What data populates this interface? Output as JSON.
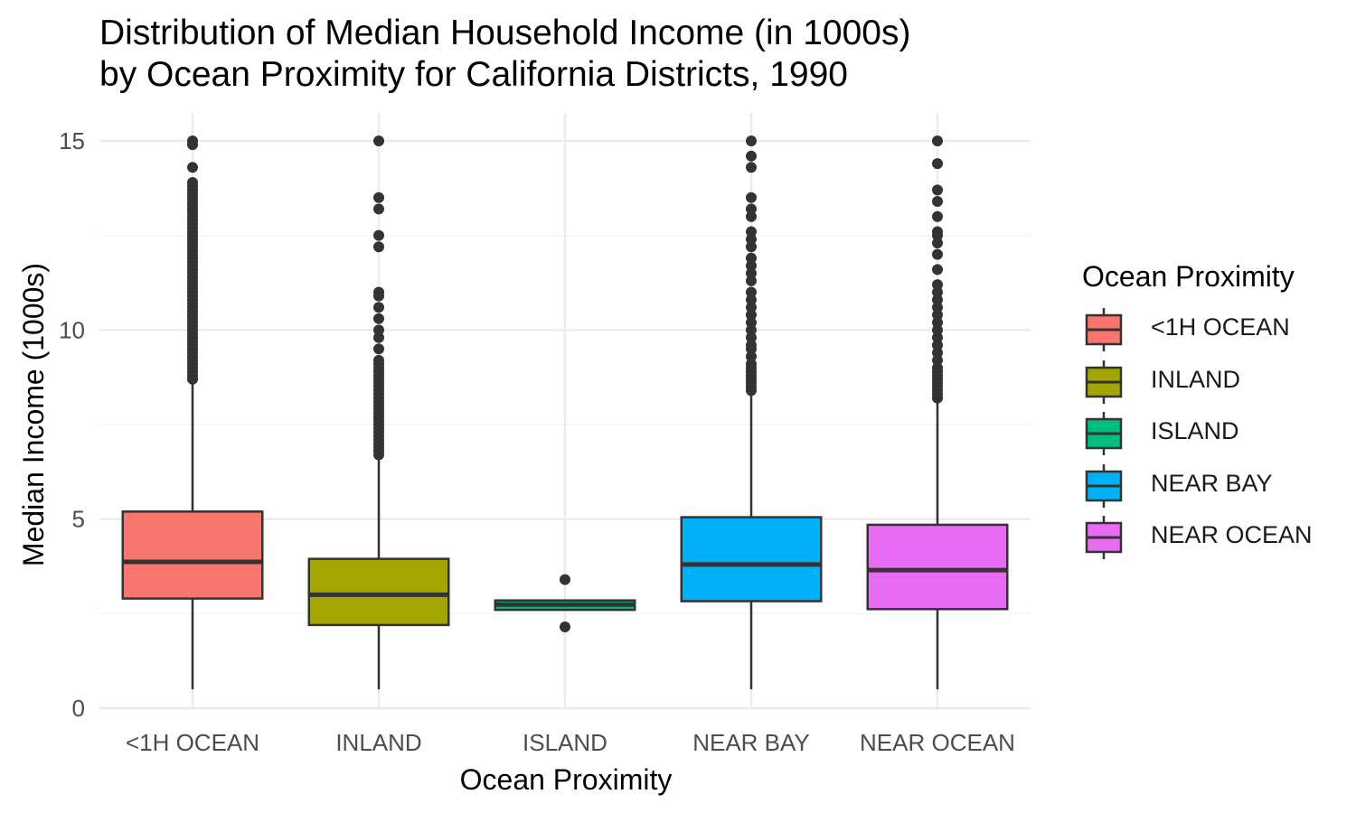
{
  "chart_data": {
    "type": "boxplot",
    "title_lines": [
      "Distribution of Median Household Income (in 1000s)",
      "by Ocean Proximity for California Districts, 1990"
    ],
    "xlabel": "Ocean Proximity",
    "ylabel": "Median Income (1000s)",
    "ylim": [
      0,
      15.5
    ],
    "yticks": [
      0,
      5,
      10,
      15
    ],
    "grid": true,
    "legend": {
      "title": "Ocean Proximity",
      "placement": "right"
    },
    "categories": [
      "<1H OCEAN",
      "INLAND",
      "ISLAND",
      "NEAR BAY",
      "NEAR OCEAN"
    ],
    "colors": [
      "#F8766D",
      "#A3A500",
      "#00BF7D",
      "#00B0F6",
      "#E76BF3"
    ],
    "boxes": [
      {
        "category": "<1H OCEAN",
        "whisker_low": 0.5,
        "q1": 2.9,
        "median": 3.87,
        "q3": 5.2,
        "whisker_high": 8.6,
        "outliers": [
          8.7,
          8.8,
          8.9,
          9.0,
          9.1,
          9.2,
          9.3,
          9.4,
          9.5,
          9.6,
          9.7,
          9.8,
          9.9,
          10.0,
          10.1,
          10.2,
          10.3,
          10.4,
          10.5,
          10.6,
          10.7,
          10.8,
          10.9,
          11.0,
          11.1,
          11.2,
          11.3,
          11.4,
          11.5,
          11.6,
          11.7,
          11.8,
          11.9,
          12.0,
          12.1,
          12.2,
          12.3,
          12.4,
          12.5,
          12.6,
          12.7,
          12.8,
          12.9,
          13.0,
          13.1,
          13.2,
          13.3,
          13.4,
          13.5,
          13.6,
          13.7,
          13.8,
          13.9,
          14.3,
          14.9,
          15.0
        ]
      },
      {
        "category": "INLAND",
        "whisker_low": 0.5,
        "q1": 2.2,
        "median": 3.0,
        "q3": 3.95,
        "whisker_high": 6.6,
        "outliers": [
          6.7,
          6.8,
          6.9,
          7.0,
          7.1,
          7.2,
          7.3,
          7.4,
          7.5,
          7.6,
          7.7,
          7.8,
          7.9,
          8.0,
          8.1,
          8.2,
          8.3,
          8.4,
          8.5,
          8.6,
          8.7,
          8.8,
          8.9,
          9.0,
          9.1,
          9.2,
          9.5,
          9.8,
          10.0,
          10.3,
          10.6,
          10.9,
          11.0,
          12.2,
          12.5,
          13.2,
          13.5,
          15.0
        ]
      },
      {
        "category": "ISLAND",
        "whisker_low": 2.6,
        "q1": 2.6,
        "median": 2.74,
        "q3": 2.85,
        "whisker_high": 2.85,
        "outliers": [
          2.15,
          3.4
        ]
      },
      {
        "category": "NEAR BAY",
        "whisker_low": 0.5,
        "q1": 2.83,
        "median": 3.8,
        "q3": 5.05,
        "whisker_high": 8.3,
        "outliers": [
          8.4,
          8.5,
          8.6,
          8.7,
          8.8,
          8.9,
          9.0,
          9.1,
          9.3,
          9.5,
          9.6,
          9.8,
          10.0,
          10.2,
          10.4,
          10.6,
          10.8,
          11.0,
          11.3,
          11.5,
          11.7,
          11.9,
          12.2,
          12.4,
          12.6,
          13.0,
          13.2,
          13.5,
          14.3,
          14.6,
          15.0
        ]
      },
      {
        "category": "NEAR OCEAN",
        "whisker_low": 0.5,
        "q1": 2.62,
        "median": 3.65,
        "q3": 4.85,
        "whisker_high": 8.1,
        "outliers": [
          8.2,
          8.3,
          8.4,
          8.5,
          8.6,
          8.7,
          8.8,
          8.9,
          9.0,
          9.2,
          9.4,
          9.6,
          9.8,
          10.0,
          10.2,
          10.4,
          10.6,
          10.8,
          11.0,
          11.2,
          11.6,
          12.0,
          12.3,
          12.5,
          12.6,
          13.0,
          13.4,
          13.7,
          14.4,
          15.0
        ]
      }
    ]
  }
}
